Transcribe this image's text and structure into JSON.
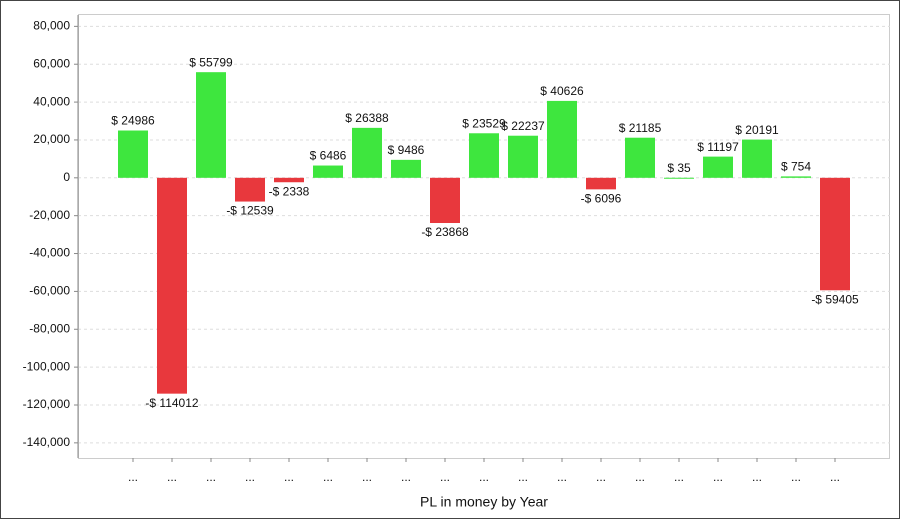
{
  "chart_data": {
    "type": "bar",
    "xlabel": "PL in money by Year",
    "categories": [
      "...",
      "...",
      "...",
      "...",
      "...",
      "...",
      "...",
      "...",
      "...",
      "...",
      "...",
      "...",
      "...",
      "...",
      "...",
      "...",
      "...",
      "...",
      "..."
    ],
    "values": [
      24986,
      -114012,
      55799,
      -12539,
      -2338,
      6486,
      26388,
      9486,
      -23868,
      23529,
      22237,
      40626,
      -6096,
      21185,
      35,
      11197,
      20191,
      754,
      -59405
    ],
    "value_labels": [
      "$ 24986",
      "-$ 114012",
      "$ 55799",
      "-$ 12539",
      "-$ 2338",
      "$ 6486",
      "$ 26388",
      "$ 9486",
      "-$ 23868",
      "$ 23529",
      "$ 22237",
      "$ 40626",
      "-$ 6096",
      "$ 21185",
      "$ 35",
      "$ 11197",
      "$ 20191",
      "$ 754",
      "-$ 59405"
    ],
    "positive_color": "#3ee63e",
    "negative_color": "#e8383d",
    "ylim": [
      -148000,
      86000
    ],
    "yticks": [
      {
        "value": -140000,
        "label": "-140,000"
      },
      {
        "value": -120000,
        "label": "-120,000"
      },
      {
        "value": -100000,
        "label": "-100,000"
      },
      {
        "value": -80000,
        "label": "-80,000"
      },
      {
        "value": -60000,
        "label": "-60,000"
      },
      {
        "value": -40000,
        "label": "-40,000"
      },
      {
        "value": -20000,
        "label": "-20,000"
      },
      0,
      {
        "value": 20000,
        "label": "20,000"
      },
      {
        "value": 40000,
        "label": "40,000"
      },
      {
        "value": 60000,
        "label": "60,000"
      },
      {
        "value": 80000,
        "label": "80,000"
      }
    ],
    "grid": true
  }
}
